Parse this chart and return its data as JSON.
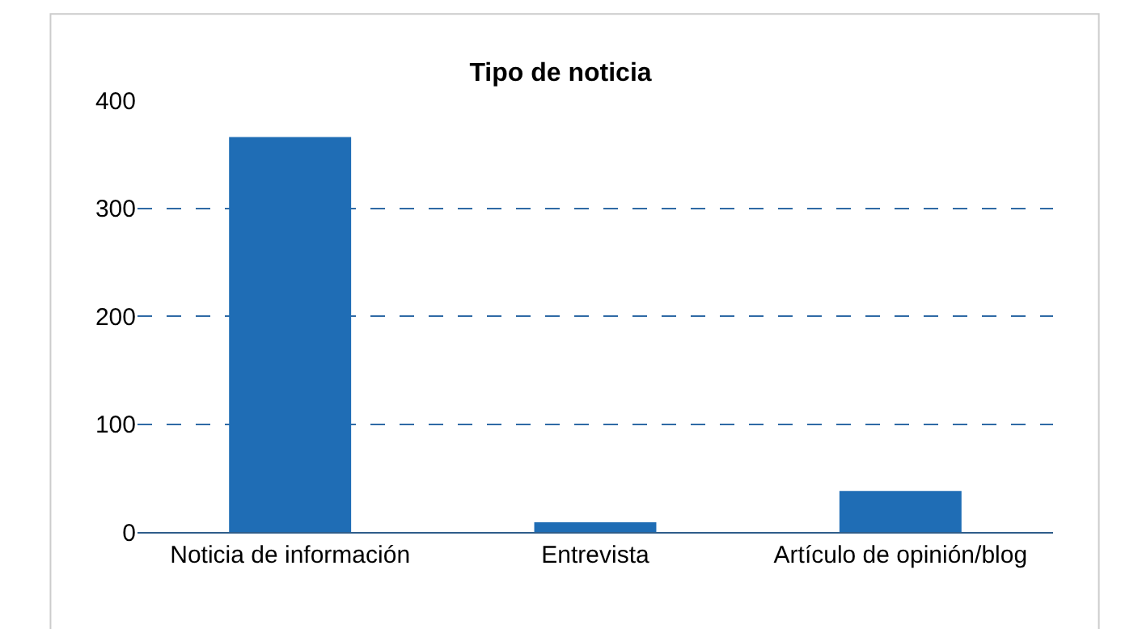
{
  "chart_data": {
    "type": "bar",
    "title": "Tipo de noticia",
    "categories": [
      "Noticia de información",
      "Entrevista",
      "Artículo de opinión/blog"
    ],
    "values": [
      366,
      9,
      38
    ],
    "color": "#1f6db5",
    "ylim": [
      0,
      400
    ],
    "yticks": [
      0,
      100,
      200,
      300,
      400
    ],
    "grid": "y",
    "legend": false
  }
}
